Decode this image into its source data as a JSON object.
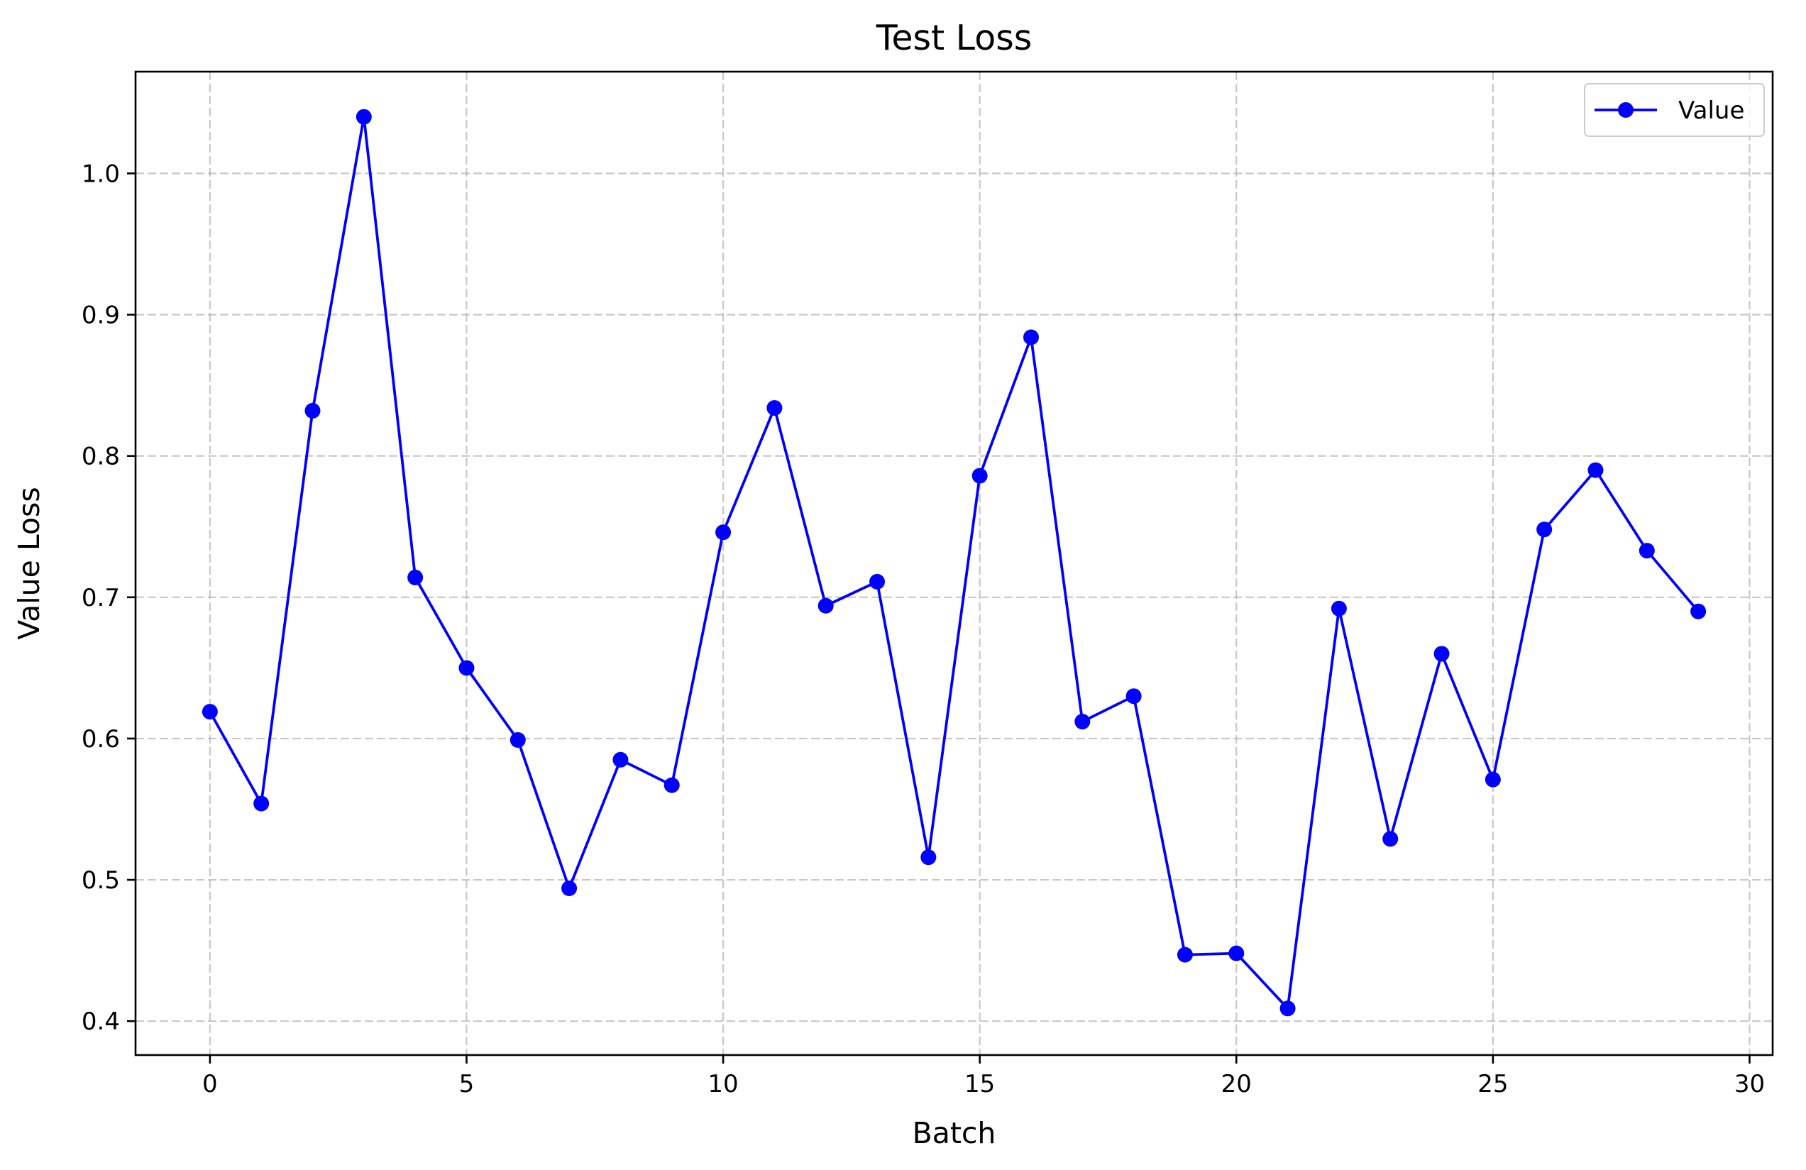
{
  "chart_data": {
    "type": "line",
    "title": "Test Loss",
    "xlabel": "Batch",
    "ylabel": "Value Loss",
    "xlim": [
      -1.45,
      30.45
    ],
    "ylim": [
      0.376,
      1.072
    ],
    "xticks": [
      0,
      5,
      10,
      15,
      20,
      25,
      30
    ],
    "yticks": [
      0.4,
      0.5,
      0.6,
      0.7,
      0.8,
      0.9,
      1.0
    ],
    "xtick_labels": [
      "0",
      "5",
      "10",
      "15",
      "20",
      "25",
      "30"
    ],
    "ytick_labels": [
      "0.4",
      "0.5",
      "0.6",
      "0.7",
      "0.8",
      "0.9",
      "1.0"
    ],
    "grid": true,
    "legend_position": "top-right",
    "series": [
      {
        "name": "Value",
        "color": "#0000ff",
        "marker": "circle",
        "x": [
          0,
          1,
          2,
          3,
          4,
          5,
          6,
          7,
          8,
          9,
          10,
          11,
          12,
          13,
          14,
          15,
          16,
          17,
          18,
          19,
          20,
          21,
          22,
          23,
          24,
          25,
          26,
          27,
          28,
          29
        ],
        "y": [
          0.619,
          0.554,
          0.832,
          1.04,
          0.714,
          0.65,
          0.599,
          0.494,
          0.585,
          0.567,
          0.746,
          0.834,
          0.694,
          0.711,
          0.516,
          0.786,
          0.884,
          0.612,
          0.63,
          0.447,
          0.448,
          0.409,
          0.692,
          0.529,
          0.66,
          0.571,
          0.748,
          0.79,
          0.733,
          0.69
        ]
      }
    ]
  }
}
